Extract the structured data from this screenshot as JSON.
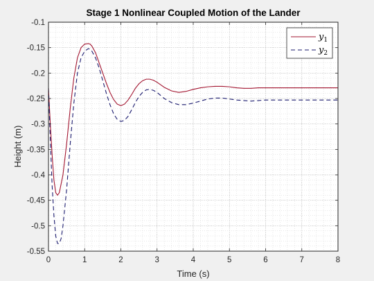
{
  "chart_data": {
    "type": "line",
    "title": "Stage 1 Nonlinear Coupled Motion of the Lander",
    "xlabel": "Time (s)",
    "ylabel": "Height (m)",
    "xlim": [
      0,
      8
    ],
    "ylim": [
      -0.55,
      -0.1
    ],
    "xticks": [
      0,
      1,
      2,
      3,
      4,
      5,
      6,
      7,
      8
    ],
    "xtick_labels": [
      "0",
      "1",
      "2",
      "3",
      "4",
      "5",
      "6",
      "7",
      "8"
    ],
    "yticks": [
      -0.1,
      -0.15,
      -0.2,
      -0.25,
      -0.3,
      -0.35,
      -0.4,
      -0.45,
      -0.5,
      -0.55
    ],
    "ytick_labels": [
      "-0.1",
      "-0.15",
      "-0.2",
      "-0.25",
      "-0.3",
      "-0.35",
      "-0.4",
      "-0.45",
      "-0.5",
      "-0.55"
    ],
    "grid": "major and minor, dotted",
    "legend_position": "top-right",
    "series": [
      {
        "name": "y1",
        "legend_base": "y",
        "legend_sub": "1",
        "color": "#a2142f",
        "line_style": "solid",
        "x": [
          0,
          0.05,
          0.1,
          0.15,
          0.2,
          0.25,
          0.3,
          0.4,
          0.5,
          0.6,
          0.7,
          0.8,
          0.9,
          1.0,
          1.1,
          1.15,
          1.2,
          1.3,
          1.4,
          1.5,
          1.6,
          1.7,
          1.8,
          1.9,
          2.0,
          2.1,
          2.2,
          2.3,
          2.4,
          2.5,
          2.6,
          2.7,
          2.8,
          2.9,
          3.0,
          3.1,
          3.2,
          3.4,
          3.6,
          3.8,
          4.0,
          4.2,
          4.4,
          4.6,
          4.8,
          5.0,
          5.2,
          5.4,
          5.6,
          5.8,
          6.0,
          6.5,
          7.0,
          7.5,
          8.0
        ],
        "y": [
          -0.23,
          -0.3,
          -0.36,
          -0.41,
          -0.435,
          -0.44,
          -0.435,
          -0.4,
          -0.34,
          -0.27,
          -0.21,
          -0.17,
          -0.15,
          -0.143,
          -0.142,
          -0.143,
          -0.147,
          -0.16,
          -0.18,
          -0.2,
          -0.22,
          -0.238,
          -0.252,
          -0.261,
          -0.264,
          -0.261,
          -0.253,
          -0.242,
          -0.23,
          -0.221,
          -0.215,
          -0.212,
          -0.212,
          -0.214,
          -0.218,
          -0.223,
          -0.228,
          -0.235,
          -0.238,
          -0.236,
          -0.232,
          -0.229,
          -0.227,
          -0.226,
          -0.226,
          -0.227,
          -0.229,
          -0.23,
          -0.23,
          -0.229,
          -0.229,
          -0.229,
          -0.229,
          -0.229,
          -0.229
        ]
      },
      {
        "name": "y2",
        "legend_base": "y",
        "legend_sub": "2",
        "color": "#1a1a6e",
        "line_style": "dashed",
        "x": [
          0,
          0.05,
          0.1,
          0.15,
          0.2,
          0.25,
          0.3,
          0.35,
          0.4,
          0.5,
          0.6,
          0.7,
          0.8,
          0.9,
          1.0,
          1.1,
          1.15,
          1.2,
          1.3,
          1.4,
          1.5,
          1.6,
          1.7,
          1.8,
          1.9,
          2.0,
          2.1,
          2.2,
          2.3,
          2.4,
          2.5,
          2.6,
          2.7,
          2.8,
          2.9,
          3.0,
          3.1,
          3.2,
          3.4,
          3.6,
          3.8,
          4.0,
          4.2,
          4.4,
          4.6,
          4.8,
          5.0,
          5.2,
          5.4,
          5.6,
          5.8,
          6.0,
          6.5,
          7.0,
          7.5,
          8.0
        ],
        "y": [
          -0.23,
          -0.33,
          -0.42,
          -0.48,
          -0.52,
          -0.535,
          -0.535,
          -0.525,
          -0.5,
          -0.43,
          -0.34,
          -0.26,
          -0.2,
          -0.17,
          -0.157,
          -0.152,
          -0.153,
          -0.157,
          -0.17,
          -0.19,
          -0.215,
          -0.24,
          -0.262,
          -0.28,
          -0.291,
          -0.295,
          -0.293,
          -0.285,
          -0.272,
          -0.258,
          -0.246,
          -0.238,
          -0.233,
          -0.232,
          -0.234,
          -0.238,
          -0.244,
          -0.25,
          -0.258,
          -0.262,
          -0.262,
          -0.259,
          -0.255,
          -0.251,
          -0.249,
          -0.249,
          -0.251,
          -0.253,
          -0.254,
          -0.255,
          -0.254,
          -0.253,
          -0.253,
          -0.253,
          -0.253,
          -0.253
        ]
      }
    ]
  }
}
